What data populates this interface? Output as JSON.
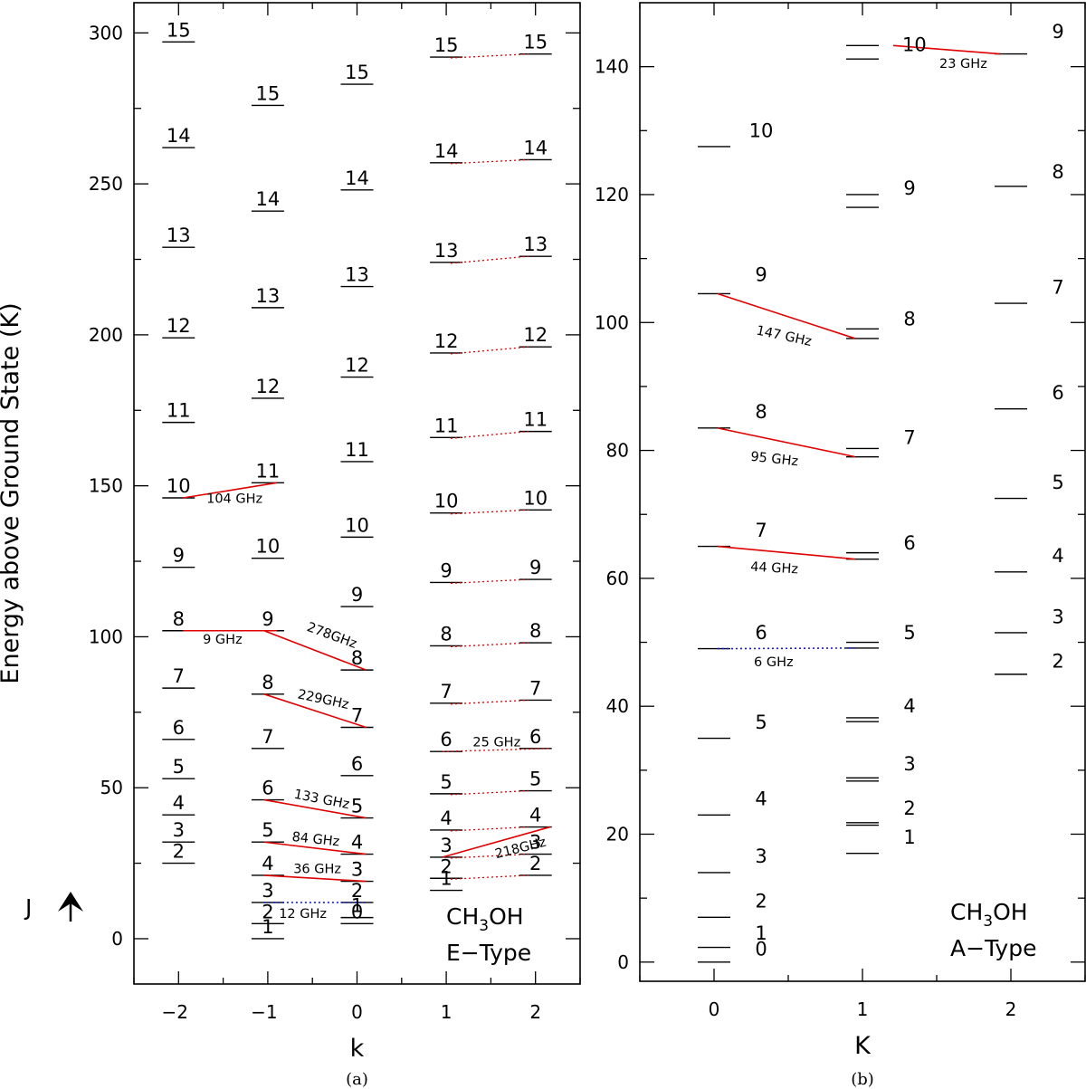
{
  "chart_data": [
    {
      "type": "energy-level-diagram",
      "panel_label": "(a)",
      "xlabel": "k",
      "ylabel": "Energy above Ground State (K)",
      "xticks": [
        -2,
        -1,
        0,
        1,
        2
      ],
      "yticks": [
        0,
        50,
        100,
        150,
        200,
        250,
        300
      ],
      "xlim": [
        -2.5,
        2.5
      ],
      "ylim": [
        -15,
        310
      ],
      "species": "CH3OH",
      "species_main": "CH",
      "species_sub": "3",
      "species_tail": "OH",
      "type_label": "E−Type",
      "j_axis_label": "J",
      "levels": [
        {
          "k": -2,
          "J": 2,
          "E": 25
        },
        {
          "k": -2,
          "J": 3,
          "E": 32
        },
        {
          "k": -2,
          "J": 4,
          "E": 41
        },
        {
          "k": -2,
          "J": 5,
          "E": 53
        },
        {
          "k": -2,
          "J": 6,
          "E": 66
        },
        {
          "k": -2,
          "J": 7,
          "E": 83
        },
        {
          "k": -2,
          "J": 8,
          "E": 102
        },
        {
          "k": -2,
          "J": 9,
          "E": 123
        },
        {
          "k": -2,
          "J": 10,
          "E": 146
        },
        {
          "k": -2,
          "J": 11,
          "E": 171
        },
        {
          "k": -2,
          "J": 12,
          "E": 199
        },
        {
          "k": -2,
          "J": 13,
          "E": 229
        },
        {
          "k": -2,
          "J": 14,
          "E": 262
        },
        {
          "k": -2,
          "J": 15,
          "E": 297
        },
        {
          "k": -1,
          "J": 1,
          "E": 0
        },
        {
          "k": -1,
          "J": 2,
          "E": 5
        },
        {
          "k": -1,
          "J": 3,
          "E": 12
        },
        {
          "k": -1,
          "J": 4,
          "E": 21
        },
        {
          "k": -1,
          "J": 5,
          "E": 32
        },
        {
          "k": -1,
          "J": 6,
          "E": 46
        },
        {
          "k": -1,
          "J": 7,
          "E": 63
        },
        {
          "k": -1,
          "J": 8,
          "E": 81
        },
        {
          "k": -1,
          "J": 9,
          "E": 102
        },
        {
          "k": -1,
          "J": 10,
          "E": 126
        },
        {
          "k": -1,
          "J": 11,
          "E": 151
        },
        {
          "k": -1,
          "J": 12,
          "E": 179
        },
        {
          "k": -1,
          "J": 13,
          "E": 209
        },
        {
          "k": -1,
          "J": 14,
          "E": 241
        },
        {
          "k": -1,
          "J": 15,
          "E": 276
        },
        {
          "k": 0,
          "J": 0,
          "E": 5
        },
        {
          "k": 0,
          "J": 1,
          "E": 7
        },
        {
          "k": 0,
          "J": 2,
          "E": 12
        },
        {
          "k": 0,
          "J": 3,
          "E": 19
        },
        {
          "k": 0,
          "J": 4,
          "E": 28
        },
        {
          "k": 0,
          "J": 5,
          "E": 40
        },
        {
          "k": 0,
          "J": 6,
          "E": 54
        },
        {
          "k": 0,
          "J": 7,
          "E": 70
        },
        {
          "k": 0,
          "J": 8,
          "E": 89
        },
        {
          "k": 0,
          "J": 9,
          "E": 110
        },
        {
          "k": 0,
          "J": 10,
          "E": 133
        },
        {
          "k": 0,
          "J": 11,
          "E": 158
        },
        {
          "k": 0,
          "J": 12,
          "E": 186
        },
        {
          "k": 0,
          "J": 13,
          "E": 216
        },
        {
          "k": 0,
          "J": 14,
          "E": 248
        },
        {
          "k": 0,
          "J": 15,
          "E": 283
        },
        {
          "k": 1,
          "J": 1,
          "E": 16
        },
        {
          "k": 1,
          "J": 2,
          "E": 20
        },
        {
          "k": 1,
          "J": 3,
          "E": 27
        },
        {
          "k": 1,
          "J": 4,
          "E": 36
        },
        {
          "k": 1,
          "J": 5,
          "E": 48
        },
        {
          "k": 1,
          "J": 6,
          "E": 62
        },
        {
          "k": 1,
          "J": 7,
          "E": 78
        },
        {
          "k": 1,
          "J": 8,
          "E": 97
        },
        {
          "k": 1,
          "J": 9,
          "E": 118
        },
        {
          "k": 1,
          "J": 10,
          "E": 141
        },
        {
          "k": 1,
          "J": 11,
          "E": 166
        },
        {
          "k": 1,
          "J": 12,
          "E": 194
        },
        {
          "k": 1,
          "J": 13,
          "E": 224
        },
        {
          "k": 1,
          "J": 14,
          "E": 257
        },
        {
          "k": 1,
          "J": 15,
          "E": 292
        },
        {
          "k": 2,
          "J": 2,
          "E": 21
        },
        {
          "k": 2,
          "J": 3,
          "E": 28
        },
        {
          "k": 2,
          "J": 4,
          "E": 37
        },
        {
          "k": 2,
          "J": 5,
          "E": 49
        },
        {
          "k": 2,
          "J": 6,
          "E": 63
        },
        {
          "k": 2,
          "J": 7,
          "E": 79
        },
        {
          "k": 2,
          "J": 8,
          "E": 98
        },
        {
          "k": 2,
          "J": 9,
          "E": 119
        },
        {
          "k": 2,
          "J": 10,
          "E": 142
        },
        {
          "k": 2,
          "J": 11,
          "E": 168
        },
        {
          "k": 2,
          "J": 12,
          "E": 196
        },
        {
          "k": 2,
          "J": 13,
          "E": 226
        },
        {
          "k": 2,
          "J": 14,
          "E": 258
        },
        {
          "k": 2,
          "J": 15,
          "E": 293
        }
      ],
      "transitions": [
        {
          "from": [
            -2,
            146
          ],
          "to": [
            -1,
            151
          ],
          "label": "104 GHz",
          "color": "#e00000",
          "style": "solid"
        },
        {
          "from": [
            -2,
            102
          ],
          "to": [
            -1,
            102
          ],
          "label": "9 GHz",
          "color": "#e00000",
          "style": "solid"
        },
        {
          "from": [
            -1,
            102
          ],
          "to": [
            0,
            89
          ],
          "label": "278GHz",
          "color": "#e00000",
          "style": "solid"
        },
        {
          "from": [
            -1,
            81
          ],
          "to": [
            0,
            70
          ],
          "label": "229GHz",
          "color": "#e00000",
          "style": "solid"
        },
        {
          "from": [
            -1,
            46
          ],
          "to": [
            0,
            40
          ],
          "label": "133 GHz",
          "color": "#e00000",
          "style": "solid"
        },
        {
          "from": [
            -1,
            32
          ],
          "to": [
            0,
            28
          ],
          "label": "84 GHz",
          "color": "#e00000",
          "style": "solid"
        },
        {
          "from": [
            -1,
            21
          ],
          "to": [
            0,
            19
          ],
          "label": "36 GHz",
          "color": "#e00000",
          "style": "solid"
        },
        {
          "from": [
            -1,
            12
          ],
          "to": [
            0,
            12
          ],
          "label": "12 GHz",
          "color": "#1a1ad0",
          "style": "dotted"
        },
        {
          "from": [
            1,
            27
          ],
          "to": [
            2,
            37
          ],
          "label": "218GHz",
          "color": "#e00000",
          "style": "solid"
        },
        {
          "from": [
            1,
            62
          ],
          "to": [
            2,
            63
          ],
          "label": "25 GHz",
          "color": "#e00000",
          "style": "dotted"
        }
      ],
      "dotted_series": {
        "from_k": 1,
        "to_k": 2,
        "color": "#e00000",
        "J_from": 2,
        "J_to": 15,
        "skip_J": [
          6
        ]
      }
    },
    {
      "type": "energy-level-diagram",
      "panel_label": "(b)",
      "xlabel": "K",
      "xticks": [
        0,
        1,
        2
      ],
      "yticks": [
        0,
        20,
        40,
        60,
        80,
        100,
        120,
        140
      ],
      "xlim": [
        -0.5,
        2.5
      ],
      "ylim": [
        -3,
        150
      ],
      "species": "CH3OH",
      "species_main": "CH",
      "species_sub": "3",
      "species_tail": "OH",
      "type_label": "A−Type",
      "levels": [
        {
          "K": 0,
          "J": 0,
          "E": 0
        },
        {
          "K": 0,
          "J": 1,
          "E": 2.3
        },
        {
          "K": 0,
          "J": 2,
          "E": 7
        },
        {
          "K": 0,
          "J": 3,
          "E": 14
        },
        {
          "K": 0,
          "J": 4,
          "E": 23
        },
        {
          "K": 0,
          "J": 5,
          "E": 35
        },
        {
          "K": 0,
          "J": 6,
          "E": 49
        },
        {
          "K": 0,
          "J": 7,
          "E": 65
        },
        {
          "K": 0,
          "J": 8,
          "E": 83.5
        },
        {
          "K": 0,
          "J": 9,
          "E": 104.5
        },
        {
          "K": 0,
          "J": 10,
          "E": 127.5
        },
        {
          "K": 1,
          "J": 1,
          "E": 17
        },
        {
          "K": 1,
          "J": 2,
          "E": 21.4
        },
        {
          "K": 1,
          "J": 2,
          "E": 21.8
        },
        {
          "K": 1,
          "J": 3,
          "E": 28.3
        },
        {
          "K": 1,
          "J": 3,
          "E": 28.8
        },
        {
          "K": 1,
          "J": 4,
          "E": 37.6
        },
        {
          "K": 1,
          "J": 4,
          "E": 38.2
        },
        {
          "K": 1,
          "J": 5,
          "E": 49.1
        },
        {
          "K": 1,
          "J": 5,
          "E": 50
        },
        {
          "K": 1,
          "J": 6,
          "E": 63
        },
        {
          "K": 1,
          "J": 6,
          "E": 64
        },
        {
          "K": 1,
          "J": 7,
          "E": 79
        },
        {
          "K": 1,
          "J": 7,
          "E": 80.3
        },
        {
          "K": 1,
          "J": 8,
          "E": 97.5
        },
        {
          "K": 1,
          "J": 8,
          "E": 99
        },
        {
          "K": 1,
          "J": 9,
          "E": 118
        },
        {
          "K": 1,
          "J": 9,
          "E": 120
        },
        {
          "K": 1,
          "J": 10,
          "E": 141.2
        },
        {
          "K": 1,
          "J": 10,
          "E": 143.3
        },
        {
          "K": 2,
          "J": 2,
          "E": 45
        },
        {
          "K": 2,
          "J": 3,
          "E": 51.5
        },
        {
          "K": 2,
          "J": 4,
          "E": 61
        },
        {
          "K": 2,
          "J": 5,
          "E": 72.5
        },
        {
          "K": 2,
          "J": 6,
          "E": 86.5
        },
        {
          "K": 2,
          "J": 7,
          "E": 103
        },
        {
          "K": 2,
          "J": 8,
          "E": 121.3
        },
        {
          "K": 2,
          "J": 9,
          "E": 142
        }
      ],
      "j_labels": [
        {
          "K": 0,
          "J": 0,
          "E": 2
        },
        {
          "K": 0,
          "J": 1,
          "E": 4.5
        },
        {
          "K": 0,
          "J": 2,
          "E": 9.5
        },
        {
          "K": 0,
          "J": 3,
          "E": 16.5
        },
        {
          "K": 0,
          "J": 4,
          "E": 25.5
        },
        {
          "K": 0,
          "J": 5,
          "E": 37.5
        },
        {
          "K": 0,
          "J": 6,
          "E": 51.5
        },
        {
          "K": 0,
          "J": 7,
          "E": 67.5
        },
        {
          "K": 0,
          "J": 8,
          "E": 86
        },
        {
          "K": 0,
          "J": 9,
          "E": 107.5
        },
        {
          "K": 0,
          "J": 10,
          "E": 130
        },
        {
          "K": 1,
          "J": 1,
          "E": 19.5
        },
        {
          "K": 1,
          "J": 2,
          "E": 24
        },
        {
          "K": 1,
          "J": 3,
          "E": 31
        },
        {
          "K": 1,
          "J": 4,
          "E": 40
        },
        {
          "K": 1,
          "J": 5,
          "E": 51.5
        },
        {
          "K": 1,
          "J": 6,
          "E": 65.5
        },
        {
          "K": 1,
          "J": 7,
          "E": 82
        },
        {
          "K": 1,
          "J": 8,
          "E": 100.5
        },
        {
          "K": 1,
          "J": 9,
          "E": 121
        },
        {
          "K": 2,
          "J": 2,
          "E": 47
        },
        {
          "K": 2,
          "J": 3,
          "E": 54
        },
        {
          "K": 2,
          "J": 4,
          "E": 63.5
        },
        {
          "K": 2,
          "J": 5,
          "E": 75
        },
        {
          "K": 2,
          "J": 6,
          "E": 89
        },
        {
          "K": 2,
          "J": 7,
          "E": 105.5
        },
        {
          "K": 2,
          "J": 8,
          "E": 123.5
        },
        {
          "K": 2,
          "J": 9,
          "E": 145.5
        }
      ],
      "transitions": [
        {
          "from": [
            1,
            143.3
          ],
          "to": [
            2,
            142
          ],
          "label": "23 GHz",
          "color": "#e00000",
          "style": "solid",
          "J_label": "10"
        },
        {
          "from": [
            0,
            104.5
          ],
          "to": [
            1,
            97.5
          ],
          "label": "147 GHz",
          "color": "#e00000",
          "style": "solid"
        },
        {
          "from": [
            0,
            83.5
          ],
          "to": [
            1,
            79
          ],
          "label": "95 GHz",
          "color": "#e00000",
          "style": "solid"
        },
        {
          "from": [
            0,
            65
          ],
          "to": [
            1,
            63
          ],
          "label": "44 GHz",
          "color": "#e00000",
          "style": "solid"
        },
        {
          "from": [
            0,
            49
          ],
          "to": [
            1,
            49.1
          ],
          "label": "6 GHz",
          "color": "#1a1ad0",
          "style": "dotted"
        }
      ]
    }
  ]
}
